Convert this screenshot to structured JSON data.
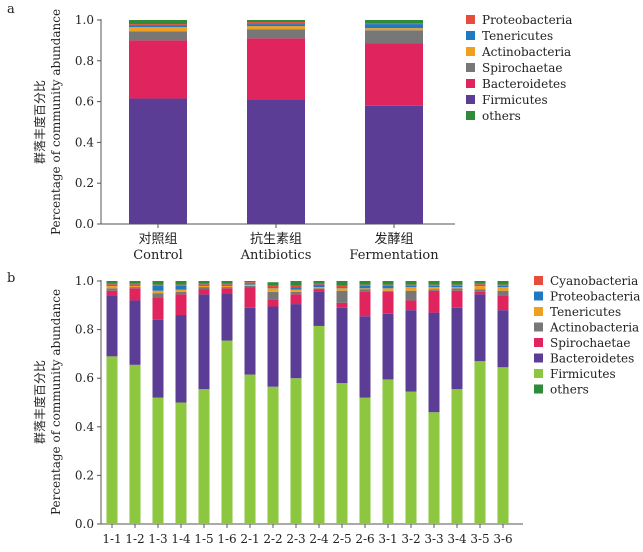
{
  "panel_labels": {
    "a": "a",
    "b": "b"
  },
  "chart_data": [
    {
      "type": "bar",
      "stacked": true,
      "panel": "a",
      "title": "",
      "ylabel_cn": "群落丰度百分比",
      "ylabel_en": "Percentage of community abundance",
      "ylim": [
        0,
        1.0
      ],
      "yticks": [
        "0.0",
        "0.2",
        "0.4",
        "0.6",
        "0.8",
        "1.0"
      ],
      "ytick_values": [
        0,
        0.2,
        0.4,
        0.6,
        0.8,
        1.0
      ],
      "categories": [
        {
          "cn": "对照组",
          "en": "Control"
        },
        {
          "cn": "抗生素组",
          "en": "Antibiotics"
        },
        {
          "cn": "发酵组",
          "en": "Fermentation"
        }
      ],
      "series": [
        {
          "name": "Firmicutes",
          "color": "#5b3d96",
          "values": [
            0.615,
            0.61,
            0.58
          ]
        },
        {
          "name": "Bacteroidetes",
          "color": "#e0245e",
          "values": [
            0.285,
            0.3,
            0.305
          ]
        },
        {
          "name": "Spirochaetae",
          "color": "#777777",
          "values": [
            0.045,
            0.045,
            0.065
          ]
        },
        {
          "name": "Actinobacteria",
          "color": "#f0a020",
          "values": [
            0.02,
            0.015,
            0.01
          ]
        },
        {
          "name": "Tenericutes",
          "color": "#1f78c0",
          "values": [
            0.01,
            0.01,
            0.02
          ]
        },
        {
          "name": "Proteobacteria",
          "color": "#e74c3c",
          "values": [
            0.005,
            0.01,
            0.005
          ]
        },
        {
          "name": "others",
          "color": "#2e8b3a",
          "values": [
            0.02,
            0.01,
            0.015
          ]
        }
      ],
      "legend": [
        "Proteobacteria",
        "Tenericutes",
        "Actinobacteria",
        "Spirochaetae",
        "Bacteroidetes",
        "Firmicutes",
        "others"
      ],
      "legend_position": "right"
    },
    {
      "type": "bar",
      "stacked": true,
      "panel": "b",
      "title": "",
      "ylabel_cn": "群落丰度百分比",
      "ylabel_en": "Percentage of community abundance",
      "ylim": [
        0,
        1.0
      ],
      "yticks": [
        "0.0",
        "0.2",
        "0.4",
        "0.6",
        "0.8",
        "1.0"
      ],
      "ytick_values": [
        0,
        0.2,
        0.4,
        0.6,
        0.8,
        1.0
      ],
      "categories": [
        "1-1",
        "1-2",
        "1-3",
        "1-4",
        "1-5",
        "1-6",
        "2-1",
        "2-2",
        "2-3",
        "2-4",
        "2-5",
        "2-6",
        "3-1",
        "3-2",
        "3-3",
        "3-4",
        "3-5",
        "3-6"
      ],
      "series": [
        {
          "name": "Firmicutes",
          "color": "#8dc63f",
          "values": [
            0.69,
            0.655,
            0.52,
            0.5,
            0.555,
            0.755,
            0.615,
            0.565,
            0.6,
            0.815,
            0.58,
            0.52,
            0.595,
            0.545,
            0.46,
            0.555,
            0.67,
            0.645
          ]
        },
        {
          "name": "Bacteroidetes",
          "color": "#5b3d96",
          "values": [
            0.25,
            0.265,
            0.32,
            0.36,
            0.39,
            0.195,
            0.275,
            0.33,
            0.305,
            0.14,
            0.31,
            0.335,
            0.27,
            0.335,
            0.41,
            0.335,
            0.275,
            0.235
          ]
        },
        {
          "name": "Spirochaetae",
          "color": "#e0245e",
          "values": [
            0.02,
            0.05,
            0.09,
            0.085,
            0.02,
            0.02,
            0.085,
            0.03,
            0.04,
            0.01,
            0.02,
            0.1,
            0.09,
            0.04,
            0.09,
            0.07,
            0.01,
            0.06
          ]
        },
        {
          "name": "Actinobacteria",
          "color": "#777777",
          "values": [
            0.01,
            0.005,
            0.02,
            0.01,
            0.01,
            0.005,
            0.005,
            0.03,
            0.01,
            0.005,
            0.05,
            0.01,
            0.005,
            0.04,
            0.005,
            0.01,
            0.01,
            0.02
          ]
        },
        {
          "name": "Tenericutes",
          "color": "#f0a020",
          "values": [
            0.01,
            0.005,
            0.01,
            0.01,
            0.005,
            0.005,
            0.005,
            0.015,
            0.01,
            0.005,
            0.01,
            0.005,
            0.01,
            0.015,
            0.01,
            0.005,
            0.015,
            0.015
          ]
        },
        {
          "name": "Proteobacteria",
          "color": "#1f78c0",
          "values": [
            0.005,
            0.005,
            0.02,
            0.015,
            0.005,
            0.005,
            0.005,
            0.005,
            0.01,
            0.01,
            0.005,
            0.01,
            0.01,
            0.005,
            0.005,
            0.005,
            0.005,
            0.005
          ]
        },
        {
          "name": "Cyanobacteria",
          "color": "#e74c3c",
          "values": [
            0.005,
            0.005,
            0.005,
            0.005,
            0.005,
            0.005,
            0.005,
            0.005,
            0.005,
            0.005,
            0.005,
            0.005,
            0.005,
            0.005,
            0.005,
            0.005,
            0.005,
            0.005
          ]
        },
        {
          "name": "others",
          "color": "#2e8b3a",
          "values": [
            0.01,
            0.01,
            0.015,
            0.015,
            0.01,
            0.01,
            0.005,
            0.015,
            0.02,
            0.01,
            0.02,
            0.015,
            0.015,
            0.015,
            0.015,
            0.015,
            0.01,
            0.015
          ]
        }
      ],
      "legend": [
        "Cyanobacteria",
        "Proteobacteria",
        "Tenericutes",
        "Actinobacteria",
        "Spirochaetae",
        "Bacteroidetes",
        "Firmicutes",
        "others"
      ],
      "legend_position": "right"
    }
  ]
}
